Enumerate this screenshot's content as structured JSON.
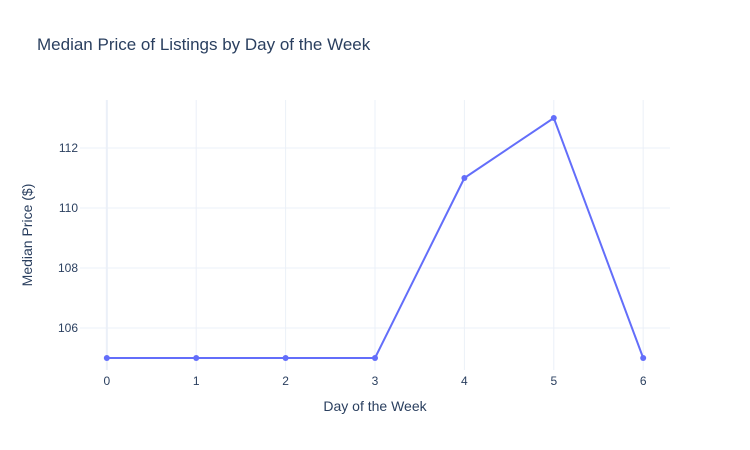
{
  "chart_data": {
    "type": "line",
    "title": "Median Price of Listings by Day of the Week",
    "xlabel": "Day of the Week",
    "ylabel": "Median Price ($)",
    "x": [
      0,
      1,
      2,
      3,
      4,
      5,
      6
    ],
    "series": [
      {
        "values": [
          105,
          105,
          105,
          105,
          111,
          113,
          105
        ],
        "color": "#636efa",
        "mode": "lines+markers"
      }
    ],
    "xlim": [
      -0.3,
      6.3
    ],
    "ylim": [
      104.6,
      113.6
    ],
    "xticks": [
      0,
      1,
      2,
      3,
      4,
      5,
      6
    ],
    "yticks": [
      106,
      108,
      110,
      112
    ],
    "grid": true,
    "legend": "none"
  }
}
